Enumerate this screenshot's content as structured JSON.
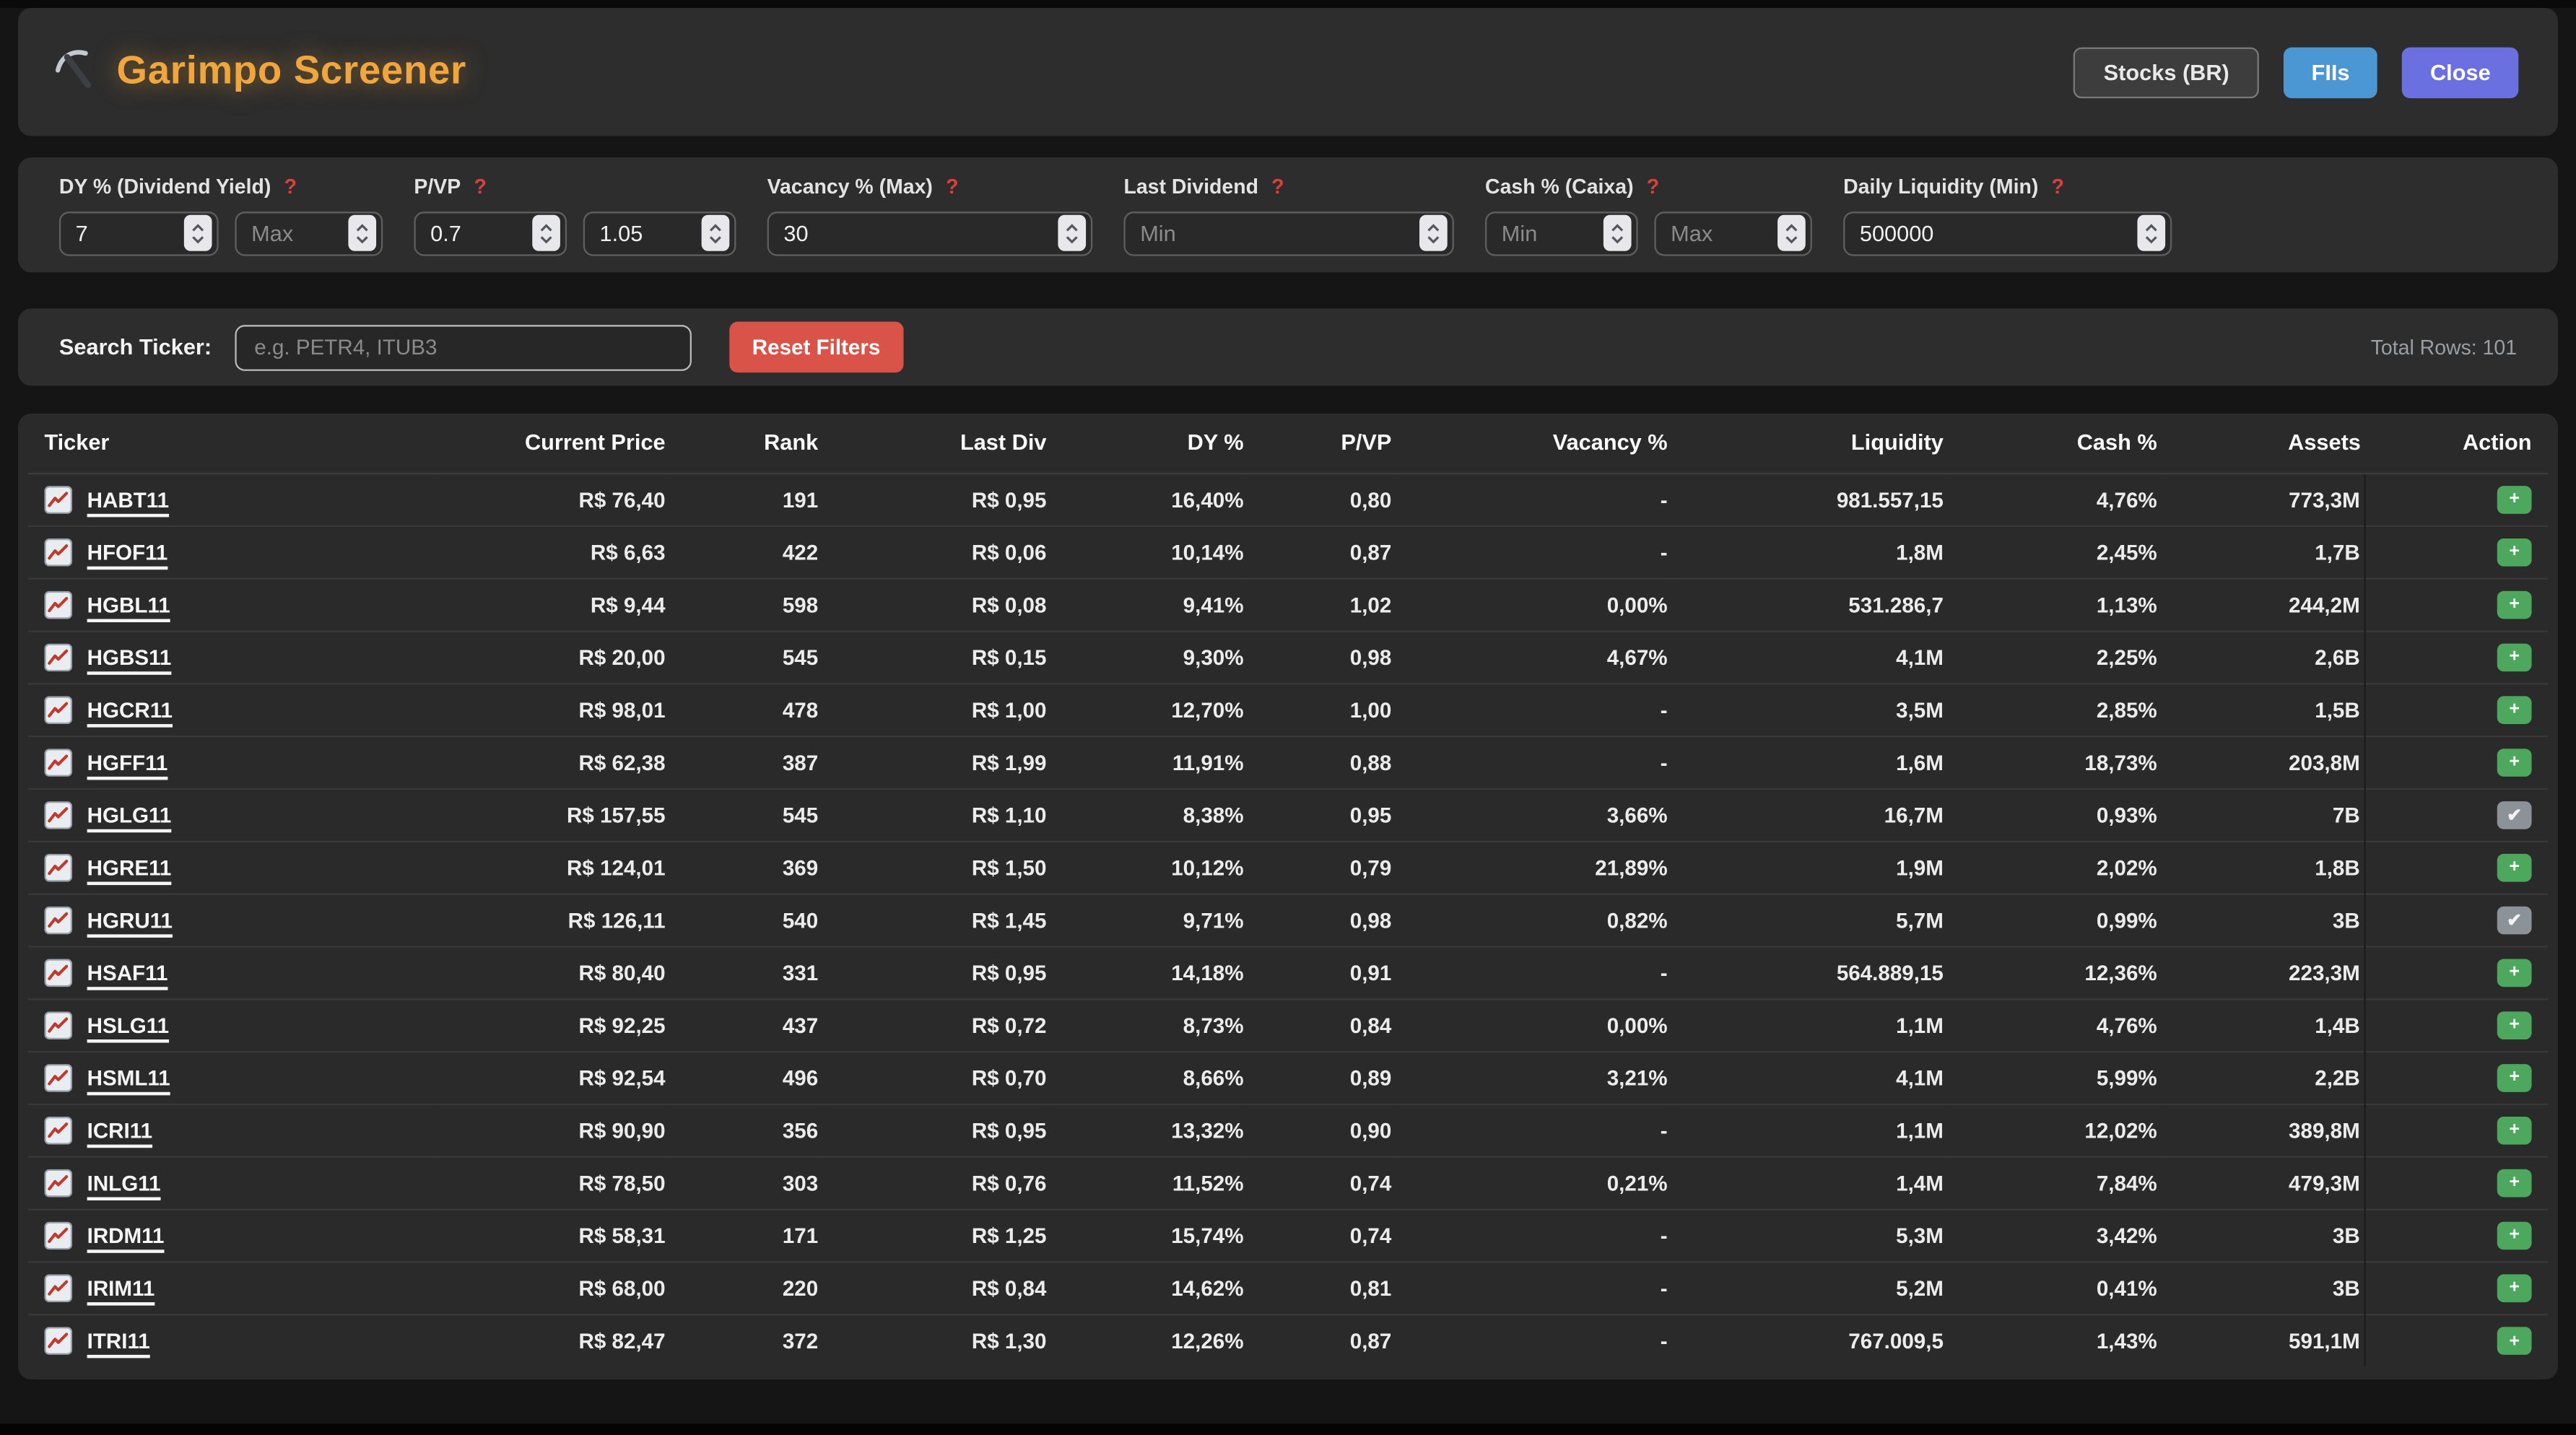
{
  "header": {
    "title": "Garimpo Screener",
    "stocks_button": "Stocks (BR)",
    "fiis_button": "FIIs",
    "close_button": "Close"
  },
  "filters": [
    {
      "label": "DY % (Dividend Yield)",
      "help": "?",
      "inputs": [
        {
          "value": "7"
        },
        {
          "placeholder": "Max"
        }
      ]
    },
    {
      "label": "P/VP",
      "help": "?",
      "inputs": [
        {
          "value": "0.7"
        },
        {
          "value": "1.05"
        }
      ]
    },
    {
      "label": "Vacancy % (Max)",
      "help": "?",
      "inputs": [
        {
          "value": "30"
        }
      ]
    },
    {
      "label": "Last Dividend",
      "help": "?",
      "inputs": [
        {
          "placeholder": "Min"
        }
      ]
    },
    {
      "label": "Cash % (Caixa)",
      "help": "?",
      "inputs": [
        {
          "placeholder": "Min"
        },
        {
          "placeholder": "Max"
        }
      ]
    },
    {
      "label": "Daily Liquidity (Min)",
      "help": "?",
      "inputs": [
        {
          "value": "500000"
        }
      ]
    }
  ],
  "search": {
    "label": "Search Ticker:",
    "placeholder": "e.g. PETR4, ITUB3",
    "reset_label": "Reset Filters",
    "total_rows": "Total Rows: 101"
  },
  "table": {
    "columns": [
      "Ticker",
      "Current Price",
      "Rank",
      "Last Div",
      "DY %",
      "P/VP",
      "Vacancy %",
      "Liquidity",
      "Cash %",
      "Assets",
      "Action"
    ],
    "action_icons": {
      "add": "+",
      "added": "✔"
    },
    "rows": [
      {
        "ticker": "HABT11",
        "price": "R$ 76,40",
        "rank": "191",
        "last_div": "R$ 0,95",
        "dy": "16,40%",
        "pvp": "0,80",
        "vacancy": "-",
        "liquidity": "981.557,15",
        "cash": "4,76%",
        "assets": "773,3M",
        "action": "add"
      },
      {
        "ticker": "HFOF11",
        "price": "R$ 6,63",
        "rank": "422",
        "last_div": "R$ 0,06",
        "dy": "10,14%",
        "pvp": "0,87",
        "vacancy": "-",
        "liquidity": "1,8M",
        "cash": "2,45%",
        "assets": "1,7B",
        "action": "add"
      },
      {
        "ticker": "HGBL11",
        "price": "R$ 9,44",
        "rank": "598",
        "last_div": "R$ 0,08",
        "dy": "9,41%",
        "pvp": "1,02",
        "vacancy": "0,00%",
        "liquidity": "531.286,7",
        "cash": "1,13%",
        "assets": "244,2M",
        "action": "add"
      },
      {
        "ticker": "HGBS11",
        "price": "R$ 20,00",
        "rank": "545",
        "last_div": "R$ 0,15",
        "dy": "9,30%",
        "pvp": "0,98",
        "vacancy": "4,67%",
        "liquidity": "4,1M",
        "cash": "2,25%",
        "assets": "2,6B",
        "action": "add"
      },
      {
        "ticker": "HGCR11",
        "price": "R$ 98,01",
        "rank": "478",
        "last_div": "R$ 1,00",
        "dy": "12,70%",
        "pvp": "1,00",
        "vacancy": "-",
        "liquidity": "3,5M",
        "cash": "2,85%",
        "assets": "1,5B",
        "action": "add"
      },
      {
        "ticker": "HGFF11",
        "price": "R$ 62,38",
        "rank": "387",
        "last_div": "R$ 1,99",
        "dy": "11,91%",
        "pvp": "0,88",
        "vacancy": "-",
        "liquidity": "1,6M",
        "cash": "18,73%",
        "assets": "203,8M",
        "action": "add"
      },
      {
        "ticker": "HGLG11",
        "price": "R$ 157,55",
        "rank": "545",
        "last_div": "R$ 1,10",
        "dy": "8,38%",
        "pvp": "0,95",
        "vacancy": "3,66%",
        "liquidity": "16,7M",
        "cash": "0,93%",
        "assets": "7B",
        "action": "added"
      },
      {
        "ticker": "HGRE11",
        "price": "R$ 124,01",
        "rank": "369",
        "last_div": "R$ 1,50",
        "dy": "10,12%",
        "pvp": "0,79",
        "vacancy": "21,89%",
        "liquidity": "1,9M",
        "cash": "2,02%",
        "assets": "1,8B",
        "action": "add"
      },
      {
        "ticker": "HGRU11",
        "price": "R$ 126,11",
        "rank": "540",
        "last_div": "R$ 1,45",
        "dy": "9,71%",
        "pvp": "0,98",
        "vacancy": "0,82%",
        "liquidity": "5,7M",
        "cash": "0,99%",
        "assets": "3B",
        "action": "added"
      },
      {
        "ticker": "HSAF11",
        "price": "R$ 80,40",
        "rank": "331",
        "last_div": "R$ 0,95",
        "dy": "14,18%",
        "pvp": "0,91",
        "vacancy": "-",
        "liquidity": "564.889,15",
        "cash": "12,36%",
        "assets": "223,3M",
        "action": "add"
      },
      {
        "ticker": "HSLG11",
        "price": "R$ 92,25",
        "rank": "437",
        "last_div": "R$ 0,72",
        "dy": "8,73%",
        "pvp": "0,84",
        "vacancy": "0,00%",
        "liquidity": "1,1M",
        "cash": "4,76%",
        "assets": "1,4B",
        "action": "add"
      },
      {
        "ticker": "HSML11",
        "price": "R$ 92,54",
        "rank": "496",
        "last_div": "R$ 0,70",
        "dy": "8,66%",
        "pvp": "0,89",
        "vacancy": "3,21%",
        "liquidity": "4,1M",
        "cash": "5,99%",
        "assets": "2,2B",
        "action": "add"
      },
      {
        "ticker": "ICRI11",
        "price": "R$ 90,90",
        "rank": "356",
        "last_div": "R$ 0,95",
        "dy": "13,32%",
        "pvp": "0,90",
        "vacancy": "-",
        "liquidity": "1,1M",
        "cash": "12,02%",
        "assets": "389,8M",
        "action": "add"
      },
      {
        "ticker": "INLG11",
        "price": "R$ 78,50",
        "rank": "303",
        "last_div": "R$ 0,76",
        "dy": "11,52%",
        "pvp": "0,74",
        "vacancy": "0,21%",
        "liquidity": "1,4M",
        "cash": "7,84%",
        "assets": "479,3M",
        "action": "add"
      },
      {
        "ticker": "IRDM11",
        "price": "R$ 58,31",
        "rank": "171",
        "last_div": "R$ 1,25",
        "dy": "15,74%",
        "pvp": "0,74",
        "vacancy": "-",
        "liquidity": "5,3M",
        "cash": "3,42%",
        "assets": "3B",
        "action": "add"
      },
      {
        "ticker": "IRIM11",
        "price": "R$ 68,00",
        "rank": "220",
        "last_div": "R$ 0,84",
        "dy": "14,62%",
        "pvp": "0,81",
        "vacancy": "-",
        "liquidity": "5,2M",
        "cash": "0,41%",
        "assets": "3B",
        "action": "add"
      },
      {
        "ticker": "ITRI11",
        "price": "R$ 82,47",
        "rank": "372",
        "last_div": "R$ 1,30",
        "dy": "12,26%",
        "pvp": "0,87",
        "vacancy": "-",
        "liquidity": "767.009,5",
        "cash": "1,43%",
        "assets": "591,1M",
        "action": "add"
      }
    ]
  },
  "colors": {
    "title": "#f0a63c",
    "fiis": "#4b97d3",
    "close": "#6b70e0",
    "reset": "#d95348",
    "add": "#4da75c",
    "added": "#8b9399",
    "help": "#dd3f3c"
  }
}
